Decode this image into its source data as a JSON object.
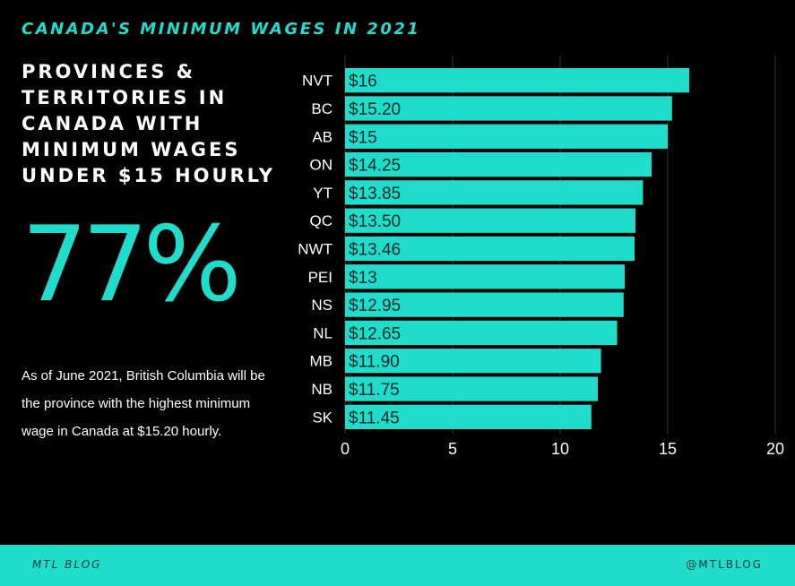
{
  "header": {
    "title": "CANADA'S MINIMUM WAGES IN 2021"
  },
  "left_panel": {
    "subtitle": "PROVINCES & TERRITORIES IN CANADA WITH MINIMUM WAGES UNDER $15 HOURLY",
    "big_stat": "77%",
    "caption": "As of June 2021, British Columbia will be the province with the highest minimum wage in Canada at $15.20 hourly."
  },
  "chart_data": {
    "type": "bar",
    "orientation": "horizontal",
    "title": "",
    "xlabel": "",
    "ylabel": "",
    "categories": [
      "NVT",
      "BC",
      "AB",
      "ON",
      "YT",
      "QC",
      "NWT",
      "PEI",
      "NS",
      "NL",
      "MB",
      "NB",
      "SK"
    ],
    "values": [
      16,
      15.2,
      15,
      14.25,
      13.85,
      13.5,
      13.46,
      13,
      12.95,
      12.65,
      11.9,
      11.75,
      11.45
    ],
    "value_labels": [
      "$16",
      "$15.20",
      "$15",
      "$14.25",
      "$13.85",
      "$13.50",
      "$13.46",
      "$13",
      "$12.95",
      "$12.65",
      "$11.90",
      "$11.75",
      "$11.45"
    ],
    "xlim": [
      0,
      20
    ],
    "xticks": [
      0,
      5,
      10,
      15,
      20
    ],
    "grid": true,
    "bar_color": "#1fdccb"
  },
  "footer": {
    "left": "MTL BLOG",
    "right": "@MTLBLOG"
  },
  "colors": {
    "accent": "#1fdccb",
    "background": "#000000",
    "text": "#ffffff"
  }
}
